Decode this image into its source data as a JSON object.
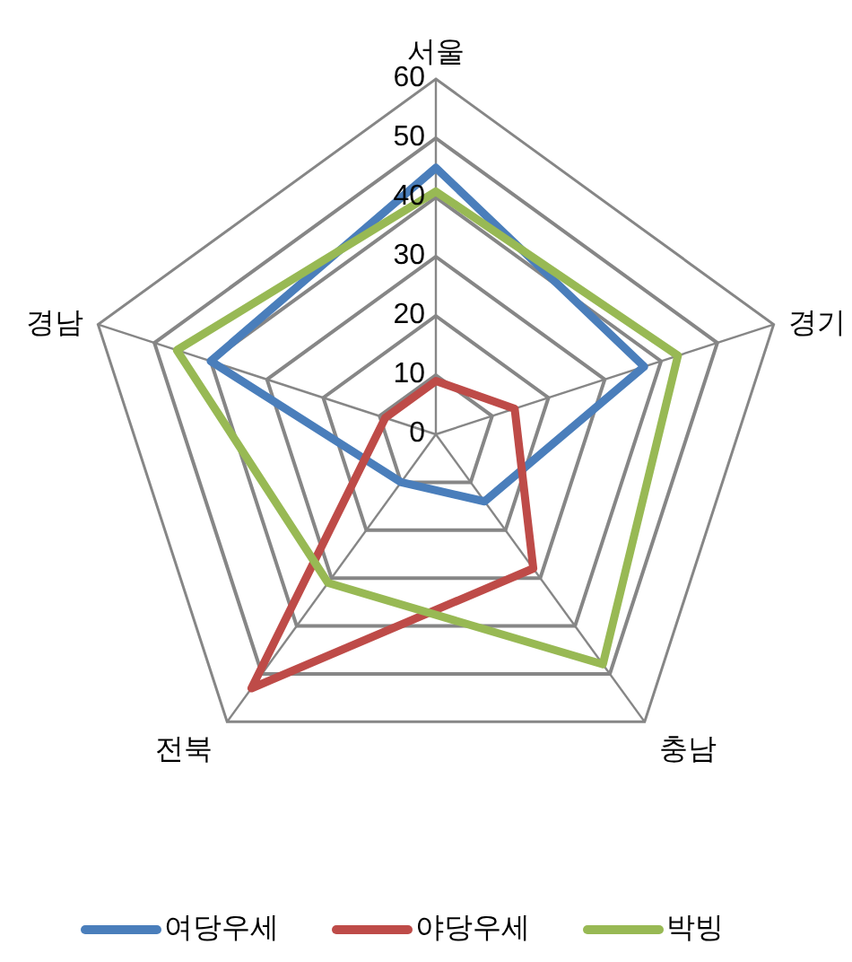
{
  "chart_data": {
    "type": "radar",
    "categories": [
      "서울",
      "경기",
      "충남",
      "전북",
      "경남"
    ],
    "series": [
      {
        "name": "여당우세",
        "color": "#4a7ebb",
        "values": [
          45,
          37,
          14,
          10,
          40
        ]
      },
      {
        "name": "야당우세",
        "color": "#be4b48",
        "values": [
          9,
          14,
          28,
          53,
          9
        ]
      },
      {
        "name": "박빙",
        "color": "#98b954",
        "values": [
          41,
          43,
          48,
          31,
          46
        ]
      }
    ],
    "ylim": [
      0,
      60
    ],
    "yticks": [
      0,
      10,
      20,
      30,
      40,
      50,
      60
    ],
    "grid": true,
    "legend": "bottom",
    "line_style": "solid",
    "marker": "none"
  }
}
